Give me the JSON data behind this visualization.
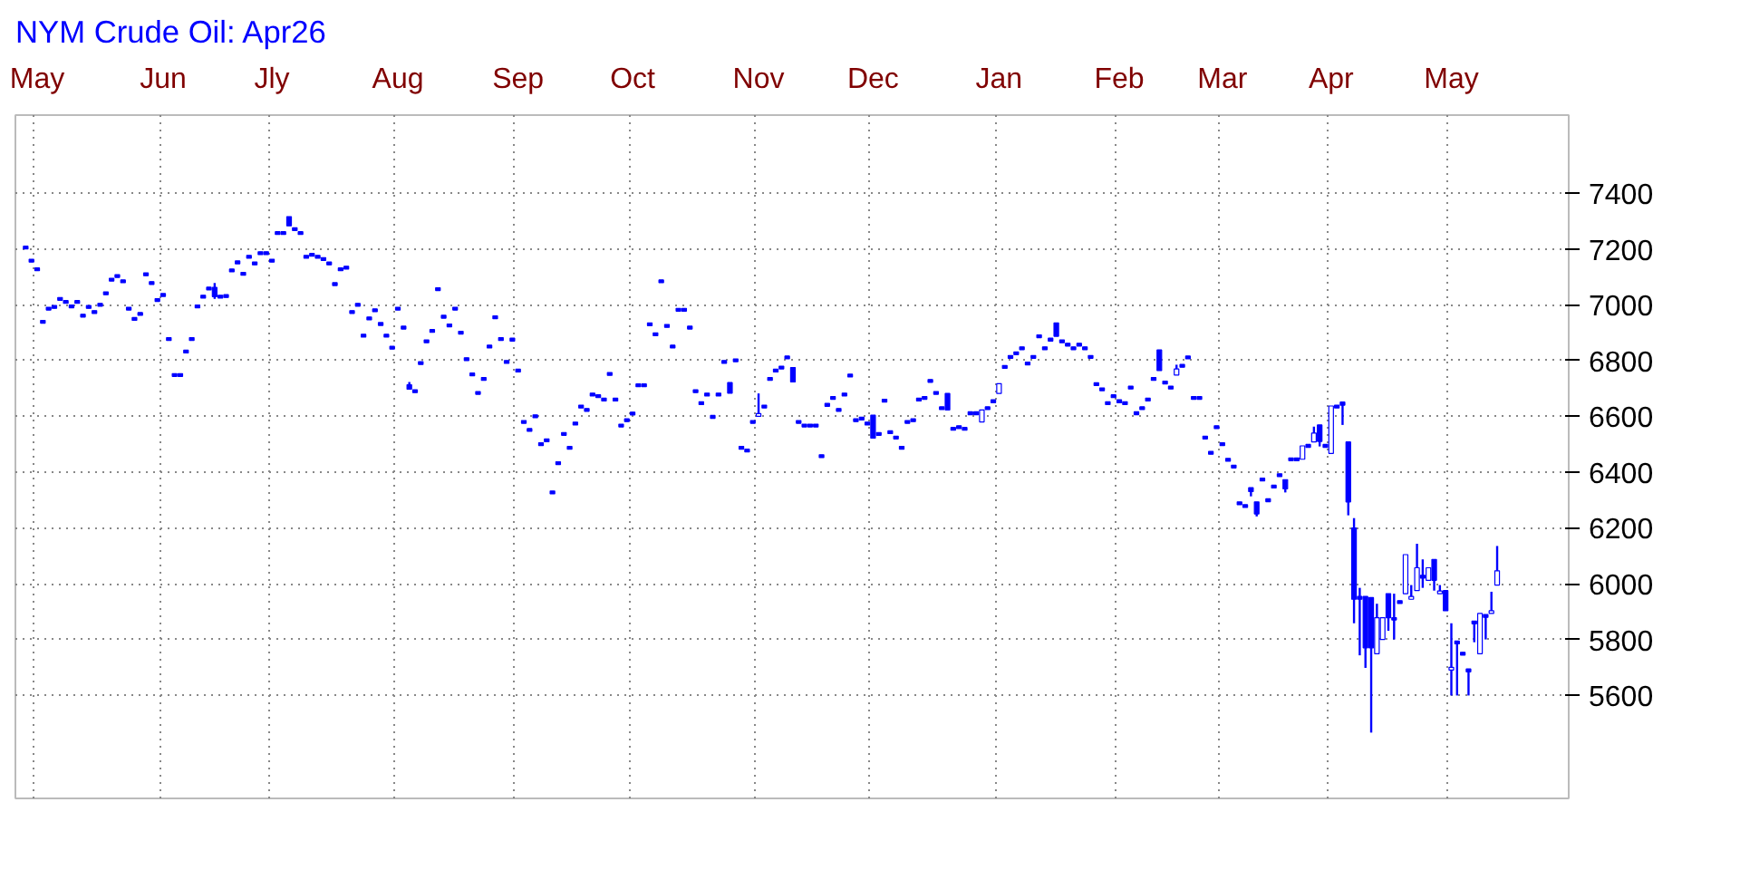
{
  "chart_data": {
    "type": "candlestick",
    "title": "NYM Crude Oil: Apr26",
    "color": "#0000ff",
    "categories": [
      null,
      null,
      "May",
      null,
      null,
      null,
      null,
      null,
      null,
      null,
      null,
      null,
      null,
      null,
      null,
      null,
      null,
      null,
      null,
      null,
      null,
      null,
      null,
      null,
      "Jun",
      null,
      null,
      null,
      null,
      null,
      null,
      null,
      null,
      null,
      null,
      null,
      null,
      null,
      null,
      null,
      null,
      null,
      null,
      "Jly",
      null,
      null,
      null,
      null,
      null,
      null,
      null,
      null,
      null,
      null,
      null,
      null,
      null,
      null,
      null,
      null,
      null,
      null,
      null,
      null,
      null,
      "Aug",
      null,
      null,
      null,
      null,
      null,
      null,
      null,
      null,
      null,
      null,
      null,
      null,
      null,
      null,
      null,
      null,
      null,
      null,
      null,
      null,
      "Sep",
      null,
      null,
      null,
      null,
      null,
      null,
      null,
      null,
      null,
      null,
      null,
      null,
      null,
      null,
      null,
      null,
      null,
      null,
      null,
      "Oct",
      null,
      null,
      null,
      null,
      null,
      null,
      null,
      null,
      null,
      null,
      null,
      null,
      null,
      null,
      null,
      null,
      null,
      null,
      null,
      null,
      null,
      "Nov",
      null,
      null,
      null,
      null,
      null,
      null,
      null,
      null,
      null,
      null,
      null,
      null,
      null,
      null,
      null,
      null,
      null,
      null,
      null,
      "Dec",
      null,
      null,
      null,
      null,
      null,
      null,
      null,
      null,
      null,
      null,
      null,
      null,
      null,
      null,
      null,
      null,
      null,
      null,
      null,
      null,
      null,
      "Jan",
      null,
      null,
      null,
      null,
      null,
      null,
      null,
      null,
      null,
      null,
      null,
      null,
      null,
      null,
      null,
      null,
      null,
      null,
      null,
      null,
      "Feb",
      null,
      null,
      null,
      null,
      null,
      null,
      null,
      null,
      null,
      null,
      null,
      null,
      null,
      null,
      null,
      null,
      null,
      "Mar",
      null,
      null,
      null,
      null,
      null,
      null,
      null,
      null,
      null,
      null,
      null,
      null,
      null,
      null,
      null,
      null,
      null,
      null,
      "Apr",
      null,
      null,
      null,
      null,
      null,
      null,
      null,
      null,
      null,
      null,
      null,
      null,
      null,
      null,
      null,
      null,
      null,
      null,
      null,
      null,
      "May",
      null,
      null,
      null,
      null,
      null,
      null,
      null,
      null
    ],
    "ohlc": [
      [
        7210,
        7210,
        7200,
        7200
      ],
      [
        7163,
        7163,
        7153,
        7153
      ],
      [
        7132,
        7132,
        7122,
        7122
      ],
      [
        6944,
        6944,
        6934,
        6934
      ],
      [
        6991,
        6991,
        6981,
        6981
      ],
      [
        6997,
        6997,
        6987,
        6987
      ],
      [
        7026,
        7026,
        7016,
        7016
      ],
      [
        7015,
        7015,
        7005,
        7005
      ],
      [
        6999,
        6999,
        6989,
        6989
      ],
      [
        7015,
        7015,
        7005,
        7005
      ],
      [
        6966,
        6966,
        6956,
        6956
      ],
      [
        6997,
        6997,
        6987,
        6987
      ],
      [
        6979,
        6979,
        6969,
        6969
      ],
      [
        7005,
        7005,
        6995,
        6995
      ],
      [
        7046,
        7046,
        7036,
        7036
      ],
      [
        7095,
        7095,
        7085,
        7085
      ],
      [
        7108,
        7108,
        7098,
        7098
      ],
      [
        7089,
        7089,
        7079,
        7079
      ],
      [
        6991,
        6991,
        6981,
        6981
      ],
      [
        6954,
        6954,
        6944,
        6944
      ],
      [
        6972,
        6972,
        6962,
        6962
      ],
      [
        7114,
        7114,
        7104,
        7104
      ],
      [
        7083,
        7083,
        7073,
        7073
      ],
      [
        7022,
        7022,
        7012,
        7012
      ],
      [
        7040,
        7040,
        7030,
        7030
      ],
      [
        6882,
        6882,
        6872,
        6872
      ],
      [
        6753,
        6753,
        6743,
        6743
      ],
      [
        6753,
        6753,
        6743,
        6743
      ],
      [
        6837,
        6837,
        6827,
        6827
      ],
      [
        6882,
        6882,
        6872,
        6872
      ],
      [
        6999,
        6999,
        6989,
        6989
      ],
      [
        7034,
        7034,
        7024,
        7024
      ],
      [
        7063,
        7063,
        7053,
        7053
      ],
      [
        7062,
        7078,
        7021,
        7029
      ],
      [
        7034,
        7034,
        7024,
        7024
      ],
      [
        7036,
        7036,
        7026,
        7026
      ],
      [
        7128,
        7128,
        7118,
        7118
      ],
      [
        7157,
        7157,
        7147,
        7147
      ],
      [
        7116,
        7116,
        7106,
        7106
      ],
      [
        7177,
        7177,
        7167,
        7167
      ],
      [
        7153,
        7153,
        7143,
        7143
      ],
      [
        7190,
        7190,
        7180,
        7180
      ],
      [
        7190,
        7190,
        7180,
        7180
      ],
      [
        7163,
        7163,
        7153,
        7153
      ],
      [
        7262,
        7262,
        7252,
        7252
      ],
      [
        7262,
        7262,
        7252,
        7252
      ],
      [
        7316,
        7316,
        7283,
        7283
      ],
      [
        7276,
        7276,
        7266,
        7266
      ],
      [
        7262,
        7262,
        7252,
        7252
      ],
      [
        7177,
        7177,
        7167,
        7167
      ],
      [
        7184,
        7184,
        7174,
        7174
      ],
      [
        7177,
        7177,
        7167,
        7167
      ],
      [
        7169,
        7169,
        7159,
        7159
      ],
      [
        7153,
        7153,
        7143,
        7143
      ],
      [
        7079,
        7079,
        7069,
        7069
      ],
      [
        7132,
        7132,
        7122,
        7122
      ],
      [
        7138,
        7138,
        7128,
        7128
      ],
      [
        6979,
        6979,
        6969,
        6969
      ],
      [
        7005,
        7005,
        6995,
        6995
      ],
      [
        6894,
        6894,
        6884,
        6884
      ],
      [
        6956,
        6956,
        6946,
        6946
      ],
      [
        6985,
        6985,
        6975,
        6975
      ],
      [
        6936,
        6936,
        6926,
        6926
      ],
      [
        6894,
        6894,
        6884,
        6884
      ],
      [
        6851,
        6851,
        6841,
        6841
      ],
      [
        6991,
        6991,
        6981,
        6981
      ],
      [
        6923,
        6923,
        6913,
        6913
      ],
      [
        6713,
        6723,
        6697,
        6697
      ],
      [
        6695,
        6695,
        6685,
        6685
      ],
      [
        6796,
        6796,
        6786,
        6786
      ],
      [
        6874,
        6874,
        6864,
        6864
      ],
      [
        6911,
        6911,
        6901,
        6901
      ],
      [
        7061,
        7061,
        7051,
        7051
      ],
      [
        6962,
        6962,
        6952,
        6952
      ],
      [
        6931,
        6931,
        6921,
        6921
      ],
      [
        6991,
        6991,
        6981,
        6981
      ],
      [
        6905,
        6905,
        6895,
        6895
      ],
      [
        6810,
        6810,
        6800,
        6800
      ],
      [
        6755,
        6755,
        6745,
        6745
      ],
      [
        6689,
        6689,
        6679,
        6679
      ],
      [
        6739,
        6739,
        6729,
        6729
      ],
      [
        6855,
        6855,
        6845,
        6845
      ],
      [
        6960,
        6960,
        6950,
        6950
      ],
      [
        6882,
        6882,
        6872,
        6872
      ],
      [
        6800,
        6800,
        6790,
        6790
      ],
      [
        6880,
        6880,
        6870,
        6870
      ],
      [
        6769,
        6769,
        6759,
        6759
      ],
      [
        6585,
        6585,
        6575,
        6575
      ],
      [
        6556,
        6556,
        6546,
        6546
      ],
      [
        6605,
        6605,
        6595,
        6595
      ],
      [
        6505,
        6505,
        6495,
        6495
      ],
      [
        6519,
        6519,
        6509,
        6509
      ],
      [
        6332,
        6332,
        6322,
        6322
      ],
      [
        6437,
        6437,
        6427,
        6427
      ],
      [
        6542,
        6542,
        6532,
        6532
      ],
      [
        6492,
        6492,
        6482,
        6482
      ],
      [
        6579,
        6579,
        6569,
        6569
      ],
      [
        6640,
        6640,
        6630,
        6630
      ],
      [
        6628,
        6628,
        6618,
        6618
      ],
      [
        6683,
        6683,
        6673,
        6673
      ],
      [
        6677,
        6677,
        6667,
        6667
      ],
      [
        6665,
        6665,
        6655,
        6655
      ],
      [
        6757,
        6757,
        6747,
        6747
      ],
      [
        6665,
        6665,
        6655,
        6655
      ],
      [
        6572,
        6572,
        6562,
        6562
      ],
      [
        6591,
        6591,
        6581,
        6581
      ],
      [
        6615,
        6615,
        6605,
        6605
      ],
      [
        6716,
        6716,
        6706,
        6706
      ],
      [
        6716,
        6716,
        6706,
        6706
      ],
      [
        6935,
        6935,
        6925,
        6925
      ],
      [
        6899,
        6899,
        6889,
        6889
      ],
      [
        7089,
        7089,
        7079,
        7079
      ],
      [
        6929,
        6929,
        6919,
        6919
      ],
      [
        6855,
        6855,
        6845,
        6845
      ],
      [
        6987,
        6987,
        6977,
        6977
      ],
      [
        6987,
        6987,
        6977,
        6977
      ],
      [
        6923,
        6923,
        6913,
        6913
      ],
      [
        6695,
        6695,
        6685,
        6685
      ],
      [
        6652,
        6652,
        6642,
        6642
      ],
      [
        6683,
        6683,
        6673,
        6673
      ],
      [
        6603,
        6603,
        6593,
        6593
      ],
      [
        6683,
        6683,
        6673,
        6673
      ],
      [
        6800,
        6800,
        6790,
        6790
      ],
      [
        6721,
        6721,
        6683,
        6683
      ],
      [
        6806,
        6806,
        6796,
        6796
      ],
      [
        6492,
        6492,
        6482,
        6482
      ],
      [
        6482,
        6482,
        6472,
        6472
      ],
      [
        6585,
        6585,
        6575,
        6575
      ],
      [
        6600,
        6682,
        6600,
        6610
      ],
      [
        6640,
        6640,
        6630,
        6630
      ],
      [
        6739,
        6739,
        6729,
        6729
      ],
      [
        6769,
        6769,
        6759,
        6759
      ],
      [
        6780,
        6780,
        6770,
        6770
      ],
      [
        6816,
        6816,
        6806,
        6806
      ],
      [
        6775,
        6775,
        6723,
        6723
      ],
      [
        6585,
        6585,
        6575,
        6575
      ],
      [
        6572,
        6572,
        6562,
        6562
      ],
      [
        6572,
        6572,
        6562,
        6562
      ],
      [
        6572,
        6572,
        6562,
        6562
      ],
      [
        6462,
        6462,
        6452,
        6452
      ],
      [
        6646,
        6646,
        6636,
        6636
      ],
      [
        6671,
        6671,
        6661,
        6661
      ],
      [
        6628,
        6628,
        6618,
        6618
      ],
      [
        6683,
        6683,
        6673,
        6673
      ],
      [
        6751,
        6751,
        6741,
        6741
      ],
      [
        6591,
        6591,
        6581,
        6581
      ],
      [
        6597,
        6597,
        6587,
        6587
      ],
      [
        6579,
        6579,
        6569,
        6569
      ],
      [
        6604,
        6604,
        6522,
        6522
      ],
      [
        6542,
        6542,
        6532,
        6532
      ],
      [
        6661,
        6661,
        6651,
        6651
      ],
      [
        6548,
        6548,
        6538,
        6538
      ],
      [
        6529,
        6529,
        6519,
        6519
      ],
      [
        6492,
        6492,
        6482,
        6482
      ],
      [
        6585,
        6585,
        6575,
        6575
      ],
      [
        6591,
        6591,
        6581,
        6581
      ],
      [
        6665,
        6665,
        6655,
        6655
      ],
      [
        6671,
        6671,
        6661,
        6661
      ],
      [
        6732,
        6732,
        6722,
        6722
      ],
      [
        6689,
        6689,
        6679,
        6679
      ],
      [
        6634,
        6634,
        6624,
        6624
      ],
      [
        6682,
        6682,
        6623,
        6623
      ],
      [
        6560,
        6560,
        6550,
        6550
      ],
      [
        6566,
        6566,
        6556,
        6556
      ],
      [
        6560,
        6560,
        6550,
        6550
      ],
      [
        6616,
        6616,
        6606,
        6606
      ],
      [
        6616,
        6616,
        6606,
        6606
      ],
      [
        6580,
        6623,
        6580,
        6623
      ],
      [
        6634,
        6634,
        6624,
        6624
      ],
      [
        6659,
        6659,
        6649,
        6649
      ],
      [
        6682,
        6717,
        6682,
        6717
      ],
      [
        6782,
        6782,
        6772,
        6772
      ],
      [
        6818,
        6818,
        6808,
        6808
      ],
      [
        6831,
        6831,
        6821,
        6821
      ],
      [
        6849,
        6849,
        6839,
        6839
      ],
      [
        6794,
        6794,
        6784,
        6784
      ],
      [
        6818,
        6818,
        6808,
        6808
      ],
      [
        6892,
        6892,
        6882,
        6882
      ],
      [
        6849,
        6849,
        6839,
        6839
      ],
      [
        6880,
        6880,
        6870,
        6870
      ],
      [
        6935,
        6935,
        6887,
        6887
      ],
      [
        6874,
        6874,
        6864,
        6864
      ],
      [
        6862,
        6862,
        6852,
        6852
      ],
      [
        6849,
        6849,
        6839,
        6839
      ],
      [
        6862,
        6862,
        6852,
        6852
      ],
      [
        6849,
        6849,
        6839,
        6839
      ],
      [
        6818,
        6818,
        6808,
        6808
      ],
      [
        6720,
        6720,
        6710,
        6710
      ],
      [
        6702,
        6702,
        6692,
        6692
      ],
      [
        6652,
        6652,
        6642,
        6642
      ],
      [
        6677,
        6677,
        6667,
        6667
      ],
      [
        6659,
        6659,
        6649,
        6649
      ],
      [
        6652,
        6652,
        6642,
        6642
      ],
      [
        6708,
        6708,
        6698,
        6698
      ],
      [
        6616,
        6616,
        6606,
        6606
      ],
      [
        6634,
        6634,
        6624,
        6624
      ],
      [
        6665,
        6665,
        6655,
        6655
      ],
      [
        6739,
        6739,
        6729,
        6729
      ],
      [
        6838,
        6838,
        6764,
        6764
      ],
      [
        6726,
        6726,
        6716,
        6716
      ],
      [
        6708,
        6708,
        6698,
        6698
      ],
      [
        6748,
        6785,
        6748,
        6770
      ],
      [
        6786,
        6786,
        6776,
        6776
      ],
      [
        6816,
        6816,
        6806,
        6806
      ],
      [
        6671,
        6671,
        6661,
        6661
      ],
      [
        6671,
        6671,
        6661,
        6661
      ],
      [
        6529,
        6529,
        6519,
        6519
      ],
      [
        6474,
        6474,
        6464,
        6464
      ],
      [
        6566,
        6566,
        6556,
        6556
      ],
      [
        6505,
        6505,
        6495,
        6495
      ],
      [
        6449,
        6449,
        6439,
        6439
      ],
      [
        6425,
        6425,
        6415,
        6415
      ],
      [
        6293,
        6293,
        6283,
        6283
      ],
      [
        6283,
        6283,
        6273,
        6273
      ],
      [
        6344,
        6344,
        6313,
        6330
      ],
      [
        6293,
        6293,
        6241,
        6250
      ],
      [
        6378,
        6378,
        6368,
        6368
      ],
      [
        6304,
        6304,
        6294,
        6294
      ],
      [
        6353,
        6353,
        6343,
        6343
      ],
      [
        6394,
        6394,
        6384,
        6384
      ],
      [
        6373,
        6373,
        6327,
        6340
      ],
      [
        6451,
        6451,
        6441,
        6441
      ],
      [
        6451,
        6451,
        6441,
        6441
      ],
      [
        6446,
        6494,
        6446,
        6494
      ],
      [
        6499,
        6499,
        6489,
        6489
      ],
      [
        6508,
        6563,
        6508,
        6540
      ],
      [
        6569,
        6569,
        6492,
        6510
      ],
      [
        6499,
        6499,
        6489,
        6489
      ],
      [
        6467,
        6637,
        6467,
        6637
      ],
      [
        6640,
        6640,
        6630,
        6630
      ],
      [
        6651,
        6651,
        6569,
        6640
      ],
      [
        6508,
        6508,
        6245,
        6293
      ],
      [
        6200,
        6235,
        5858,
        5944
      ],
      [
        5954,
        5985,
        5743,
        5944
      ],
      [
        5954,
        5954,
        5698,
        5770
      ],
      [
        5950,
        5950,
        5466,
        5770
      ],
      [
        5749,
        5928,
        5749,
        5878
      ],
      [
        5800,
        5878,
        5800,
        5878
      ],
      [
        5964,
        5964,
        5831,
        5878
      ],
      [
        5878,
        5964,
        5800,
        5870
      ],
      [
        5939,
        5939,
        5929,
        5929
      ],
      [
        5964,
        6104,
        5964,
        6104
      ],
      [
        5944,
        5995,
        5944,
        5954
      ],
      [
        5975,
        6143,
        5975,
        6057
      ],
      [
        6030,
        6087,
        5985,
        6020
      ],
      [
        6012,
        6057,
        6012,
        6057
      ],
      [
        6087,
        6087,
        5975,
        6012
      ],
      [
        5964,
        5995,
        5964,
        5974
      ],
      [
        5975,
        5975,
        5903,
        5903
      ],
      [
        5690,
        5858,
        5599,
        5700
      ],
      [
        5794,
        5794,
        5599,
        5784
      ],
      [
        5754,
        5754,
        5744,
        5744
      ],
      [
        5694,
        5694,
        5599,
        5684
      ],
      [
        5866,
        5866,
        5790,
        5856
      ],
      [
        5749,
        5893,
        5749,
        5893
      ],
      [
        5889,
        5889,
        5800,
        5879
      ],
      [
        5893,
        5971,
        5893,
        5903
      ],
      [
        5995,
        6135,
        5995,
        6046
      ]
    ],
    "ylim": [
      5230,
      7680
    ],
    "yticks": [
      5600,
      5800,
      6000,
      6200,
      6400,
      6600,
      6800,
      7000,
      7200,
      7400
    ],
    "grid": true
  }
}
